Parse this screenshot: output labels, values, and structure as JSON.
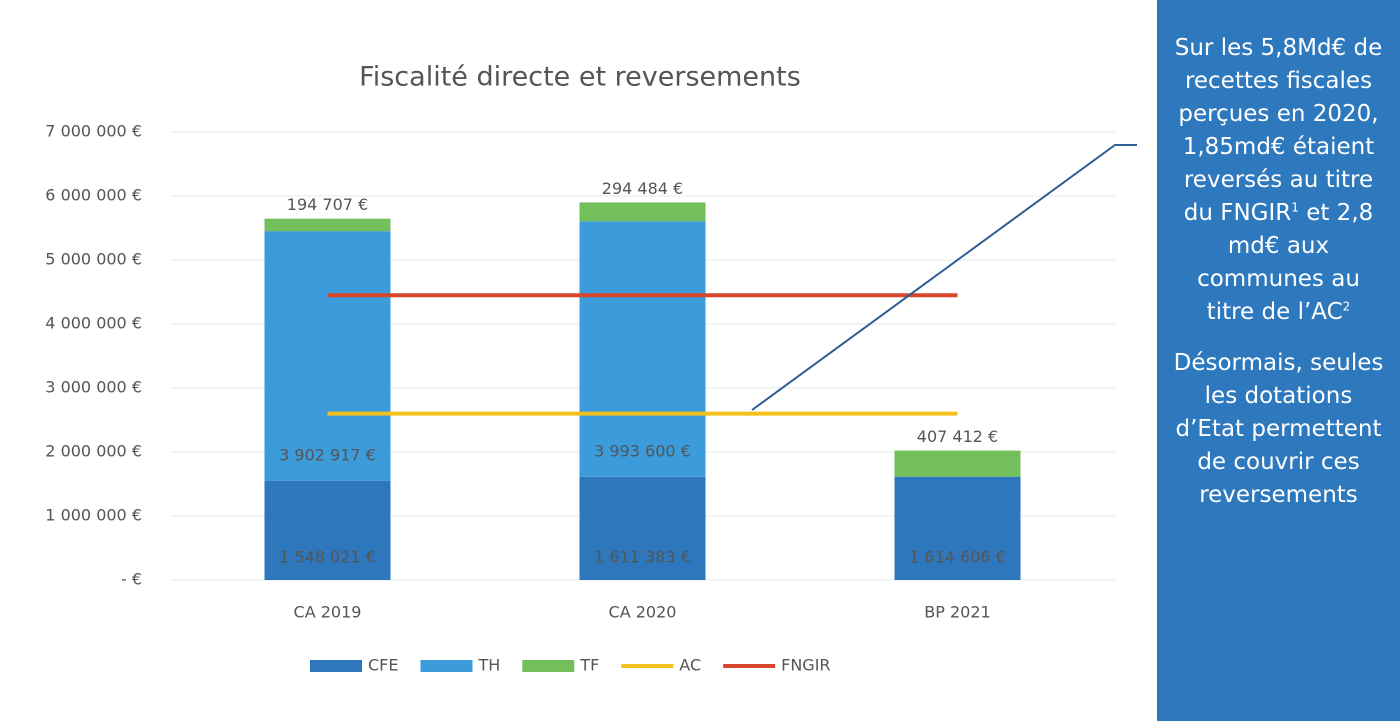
{
  "chart_data": {
    "type": "bar",
    "stacked": true,
    "title": "Fiscalité directe et reversements",
    "categories": [
      "CA 2019",
      "CA 2020",
      "BP 2021"
    ],
    "series": [
      {
        "name": "CFE",
        "type": "bar",
        "color": "#2f77bd",
        "values": [
          1548021,
          1611383,
          1614606
        ],
        "value_labels": [
          "1 548 021 €",
          "1 611 383 €",
          "1 614 606 €"
        ]
      },
      {
        "name": "TH",
        "type": "bar",
        "color": "#3b9bdb",
        "values": [
          3902917,
          3993600,
          null
        ],
        "value_labels": [
          "3 902 917 €",
          "3 993 600 €",
          null
        ]
      },
      {
        "name": "TF",
        "type": "bar",
        "color": "#72bf5c",
        "values": [
          194707,
          294484,
          407412
        ],
        "value_labels": [
          "194 707 €",
          "294 484 €",
          "407 412 €"
        ]
      },
      {
        "name": "AC",
        "type": "line",
        "color": "#f4c11c",
        "values": [
          2600000,
          2600000,
          2600000
        ]
      },
      {
        "name": "FNGIR",
        "type": "line",
        "color": "#d8462b",
        "values": [
          4450000,
          4450000,
          4450000
        ]
      }
    ],
    "ylim": [
      0,
      7000000
    ],
    "yticks": [
      {
        "value": 0,
        "label": "-   €"
      },
      {
        "value": 1000000,
        "label": "1 000 000 €"
      },
      {
        "value": 2000000,
        "label": "2 000 000 €"
      },
      {
        "value": 3000000,
        "label": "3 000 000 €"
      },
      {
        "value": 4000000,
        "label": "4 000 000 €"
      },
      {
        "value": 5000000,
        "label": "5 000 000 €"
      },
      {
        "value": 6000000,
        "label": "6 000 000 €"
      },
      {
        "value": 7000000,
        "label": "7 000 000 €"
      }
    ],
    "grid": true,
    "legend": "bottom"
  },
  "note": {
    "p1": [
      "Sur les 5,8Md€ de recettes fiscales perçues en 2020, 1,85md€ étaient reversés au titre du FNGIR",
      "1",
      " et 2,8 md€ aux communes au titre de l’AC",
      "2"
    ],
    "p2": "Désormais, seules les dotations d’Etat permettent de couvrir ces reversements"
  }
}
